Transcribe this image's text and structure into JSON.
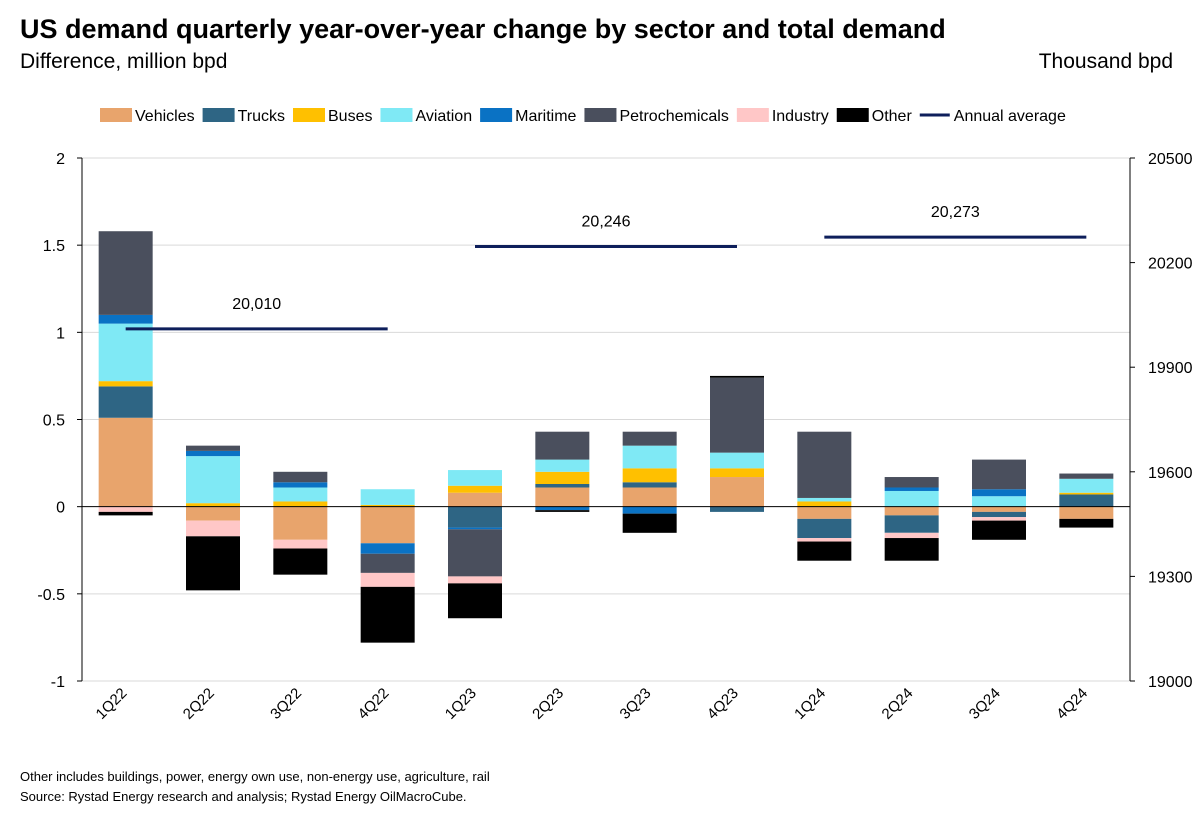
{
  "title": "US demand quarterly year-over-year change by sector and total demand",
  "subtitle": "Difference, million bpd",
  "right_axis_title": "Thousand bpd",
  "notes": [
    "Other includes buildings, power, energy own use, non-energy use, agriculture, rail",
    "Source: Rystad Energy research and analysis; Rystad Energy OilMacroCube."
  ],
  "chart_data": {
    "type": "bar",
    "stacked": true,
    "categories": [
      "1Q22",
      "2Q22",
      "3Q22",
      "4Q22",
      "1Q23",
      "2Q23",
      "3Q23",
      "4Q23",
      "1Q24",
      "2Q24",
      "3Q24",
      "4Q24"
    ],
    "left_axis": {
      "label": "Difference, million bpd",
      "range": [
        -1,
        2
      ],
      "ticks": [
        "2",
        "1.5",
        "1",
        "0.5",
        "0",
        "-0.5",
        "-1"
      ],
      "tick_values": [
        2,
        1.5,
        1,
        0.5,
        0,
        -0.5,
        -1
      ]
    },
    "right_axis": {
      "label": "Thousand bpd",
      "range": [
        19000,
        20500
      ],
      "ticks": [
        "20500",
        "20200",
        "19900",
        "19600",
        "19300",
        "19000"
      ],
      "tick_values": [
        20500,
        20200,
        19900,
        19600,
        19300,
        19000
      ]
    },
    "grid": true,
    "legend_position": "top",
    "series": [
      {
        "name": "Vehicles",
        "color": "#E8A46C",
        "values": [
          0.51,
          -0.08,
          -0.19,
          -0.21,
          0.08,
          0.11,
          0.11,
          0.17,
          -0.07,
          -0.05,
          -0.03,
          -0.07
        ]
      },
      {
        "name": "Trucks",
        "color": "#2E6584",
        "values": [
          0.18,
          0.0,
          0.0,
          0.0,
          -0.12,
          0.02,
          0.03,
          -0.03,
          -0.11,
          -0.1,
          -0.03,
          0.07
        ]
      },
      {
        "name": "Buses",
        "color": "#FFC000",
        "values": [
          0.03,
          0.02,
          0.03,
          0.01,
          0.04,
          0.07,
          0.08,
          0.05,
          0.03,
          0.0,
          0.0,
          0.01
        ]
      },
      {
        "name": "Aviation",
        "color": "#7FE9F5",
        "values": [
          0.33,
          0.27,
          0.08,
          0.09,
          0.09,
          0.07,
          0.13,
          0.09,
          0.02,
          0.09,
          0.06,
          0.08
        ]
      },
      {
        "name": "Maritime",
        "color": "#0A72C4",
        "values": [
          0.05,
          0.03,
          0.03,
          -0.06,
          -0.01,
          -0.02,
          -0.04,
          0.0,
          0.0,
          0.02,
          0.04,
          0.0
        ]
      },
      {
        "name": "Petrochemicals",
        "color": "#4A4F5D",
        "values": [
          0.48,
          0.03,
          0.06,
          -0.11,
          -0.27,
          0.16,
          0.08,
          0.43,
          0.38,
          0.06,
          0.17,
          0.03
        ]
      },
      {
        "name": "Industry",
        "color": "#FFC7C7",
        "values": [
          -0.03,
          -0.09,
          -0.05,
          -0.08,
          -0.04,
          0.0,
          0.0,
          0.0,
          -0.02,
          -0.03,
          -0.02,
          0.0
        ]
      },
      {
        "name": "Other",
        "color": "#000000",
        "values": [
          -0.02,
          -0.31,
          -0.15,
          -0.32,
          -0.2,
          -0.01,
          -0.11,
          0.01,
          -0.11,
          -0.13,
          -0.11,
          -0.05
        ]
      }
    ],
    "annual_average": {
      "name": "Annual average",
      "color": "#0E1F5B",
      "segments": [
        {
          "from": "1Q22",
          "to": "4Q22",
          "value": 20010,
          "label": "20,010"
        },
        {
          "from": "1Q23",
          "to": "4Q23",
          "value": 20246,
          "label": "20,246"
        },
        {
          "from": "1Q24",
          "to": "4Q24",
          "value": 20273,
          "label": "20,273"
        }
      ]
    }
  }
}
